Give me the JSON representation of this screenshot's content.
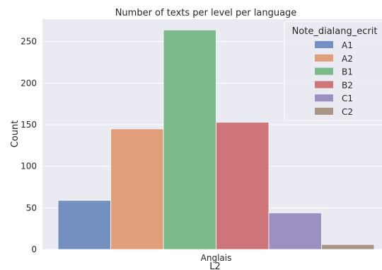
{
  "chart_data": {
    "type": "bar",
    "title": "Number of texts per level per language",
    "xlabel": "L2",
    "ylabel": "Count",
    "categories": [
      "Anglais"
    ],
    "ylim": [
      0,
      277
    ],
    "yticks": [
      0,
      50,
      100,
      150,
      200,
      250
    ],
    "grid": true,
    "legend": {
      "title": "Note_dialang_ecrit",
      "placement": "top-right"
    },
    "series": [
      {
        "name": "A1",
        "values": [
          59
        ],
        "color": "#4c72b0"
      },
      {
        "name": "A2",
        "values": [
          145
        ],
        "color": "#dd8452"
      },
      {
        "name": "B1",
        "values": [
          264
        ],
        "color": "#55a868"
      },
      {
        "name": "B2",
        "values": [
          153
        ],
        "color": "#c44e52"
      },
      {
        "name": "C1",
        "values": [
          44
        ],
        "color": "#8172b3"
      },
      {
        "name": "C2",
        "values": [
          6
        ],
        "color": "#937860"
      }
    ],
    "colors": {
      "background": "#eaeaf2",
      "grid": "#ffffff"
    }
  }
}
